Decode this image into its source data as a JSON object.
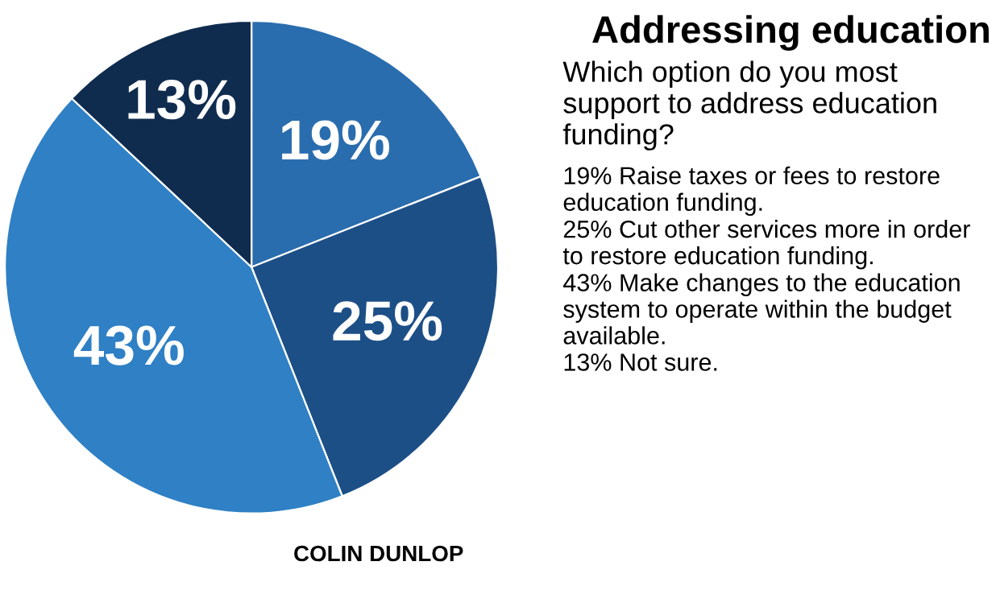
{
  "chart_data": {
    "type": "pie",
    "title": "Addressing education",
    "subtitle": "Which option do you most support to address education funding?",
    "categories": [
      null,
      null,
      null,
      null
    ],
    "values": [
      19,
      25,
      43,
      13
    ],
    "value_labels": [
      "19%",
      "25%",
      "43%",
      "13%"
    ],
    "colors": [
      "#2a6dae",
      "#1d4f87",
      "#2f80c5",
      "#0f2c4f"
    ],
    "annotations": [
      "COLIN DUNLOP",
      "19% Raise taxes or fees to restore education funding.",
      "25% Cut other services more in order to restore education funding.",
      "43% Make changes to the education system to operate within the budget available.",
      "13% Not sure."
    ]
  }
}
